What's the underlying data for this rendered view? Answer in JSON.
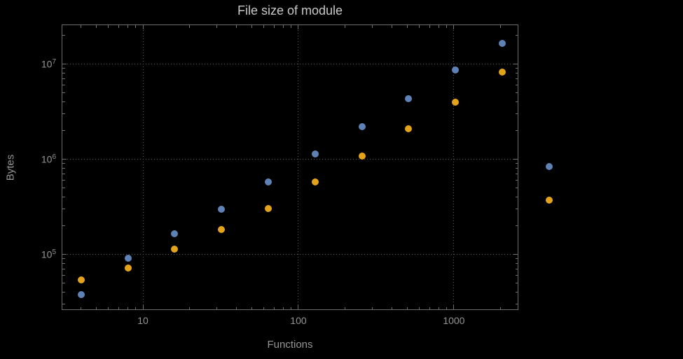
{
  "figure": {
    "background_color": "#000000",
    "frame_color": "#6e6e6e",
    "grid_color": "#5c5c5c",
    "tick_label_color": "#959595",
    "title_color": "#c9c9c9"
  },
  "chart_data": {
    "type": "scatter",
    "title": "File size of module",
    "xlabel": "Functions",
    "ylabel": "Bytes",
    "x_scale": "log",
    "y_scale": "log",
    "x_range": [
      3.0,
      2600
    ],
    "y_range": [
      26000,
      26000000
    ],
    "grid": true,
    "legend": "none",
    "x_ticks": [
      {
        "value": 10,
        "label": "10"
      },
      {
        "value": 100,
        "label": "100"
      },
      {
        "value": 1000,
        "label": "1000"
      }
    ],
    "y_ticks": [
      {
        "value": 100000,
        "base": "10",
        "exponent": "5"
      },
      {
        "value": 1000000,
        "base": "10",
        "exponent": "6"
      },
      {
        "value": 10000000,
        "base": "10",
        "exponent": "7"
      }
    ],
    "x": [
      4,
      8,
      16,
      32,
      64,
      128,
      256,
      512,
      1024,
      2048,
      4096
    ],
    "series": [
      {
        "name": "series-1-blue",
        "color": "#5e82b5",
        "values": [
          38000,
          91000,
          165000,
          300000,
          580000,
          1130000,
          2200000,
          4300000,
          8600000,
          16500000,
          830000
        ]
      },
      {
        "name": "series-2-orange",
        "color": "#e3a41c",
        "values": [
          54000,
          72000,
          113000,
          182000,
          305000,
          580000,
          1070000,
          2100000,
          4000000,
          8200000,
          370000
        ]
      }
    ]
  }
}
